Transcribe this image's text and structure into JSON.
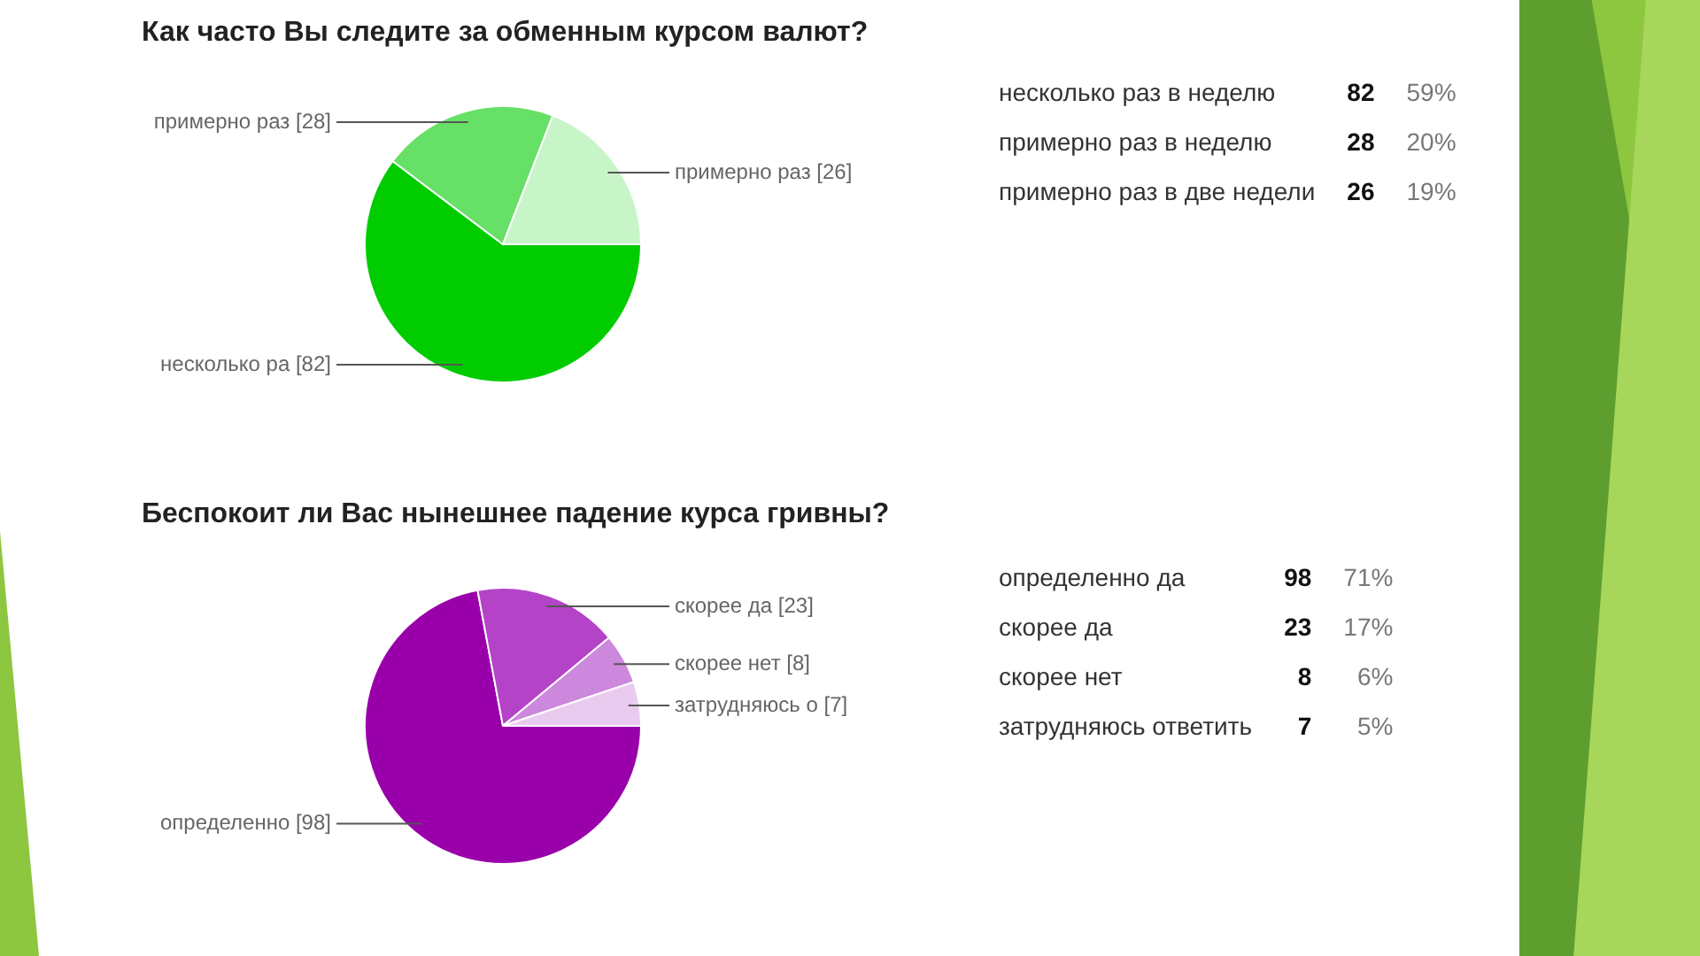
{
  "chart_data": [
    {
      "type": "pie",
      "title": "Как часто Вы следите за обменным курсом валют?",
      "categories": [
        null,
        null,
        null
      ],
      "values": [
        82,
        28,
        26
      ],
      "colors": [
        "#00cc00",
        "#66e066",
        "#c8f5c8"
      ],
      "value_labels": [
        "несколько ра [82]",
        "примерно раз [28]",
        "примерно раз [26]"
      ]
    },
    {
      "type": "other",
      "categories": [
        "несколько раз в неделю",
        "примерно раз в неделю",
        "примерно раз в две недели"
      ],
      "annotations": [
        {
          "text": "82",
          "x": "несколько раз в неделю"
        },
        {
          "text": "59%",
          "x": "несколько раз в неделю"
        },
        {
          "text": "28",
          "x": "примерно раз в неделю"
        },
        {
          "text": "20%",
          "x": "примерно раз в неделю"
        },
        {
          "text": "26",
          "x": "примерно раз в две недели"
        },
        {
          "text": "19%",
          "x": "примерно раз в две недели"
        }
      ]
    },
    {
      "type": "pie",
      "title": "Беспокоит ли Вас нынешнее падение курса гривны?",
      "categories": [
        null,
        null,
        null,
        null
      ],
      "values": [
        98,
        23,
        8,
        7
      ],
      "colors": [
        "#9900aa",
        "#b443c8",
        "#cc88dd",
        "#eacbf0"
      ],
      "value_labels": [
        "определенно [98]",
        "скорее да [23]",
        "скорее нет [8]",
        "затрудняюсь о [7]"
      ]
    },
    {
      "type": "other",
      "categories": [
        "определенно да",
        "скорее да",
        "скорее нет",
        "затрудняюсь ответить"
      ],
      "annotations": [
        {
          "text": "98",
          "x": "определенно да"
        },
        {
          "text": "71%",
          "x": "определенно да"
        },
        {
          "text": "23",
          "x": "скорее да"
        },
        {
          "text": "17%",
          "x": "скорее да"
        },
        {
          "text": "8",
          "x": "скорее нет"
        },
        {
          "text": "6%",
          "x": "скорее нет"
        },
        {
          "text": "7",
          "x": "затрудняюсь ответить"
        },
        {
          "text": "5%",
          "x": "затрудняюсь ответить"
        }
      ]
    }
  ]
}
